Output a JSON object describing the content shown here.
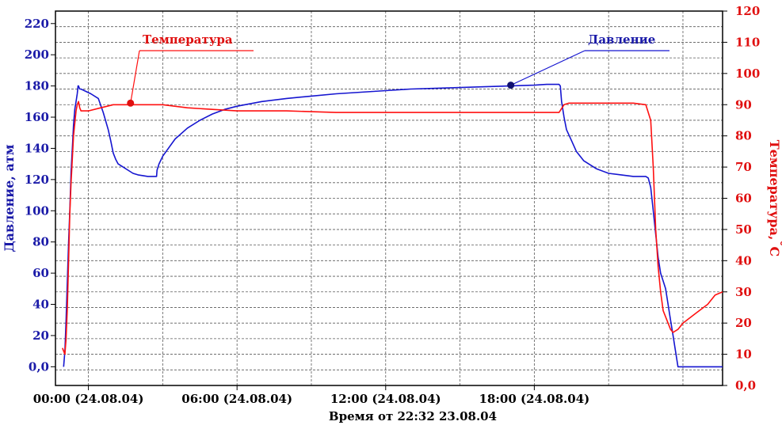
{
  "chart_data": {
    "type": "line",
    "title": "",
    "xlabel": "Время от 22:32  23.08.04",
    "ylabel_left": "Давление, атм",
    "ylabel_right_main": "Температура,",
    "ylabel_right_unit": "С",
    "ylabel_right_degree": "°",
    "x_unit": "hours",
    "xlim": [
      -1.33,
      25.6
    ],
    "x_ticks": [
      {
        "value": 0,
        "label": "00:00 (24.08.04)"
      },
      {
        "value": 6,
        "label": "06:00 (24.08.04)"
      },
      {
        "value": 12,
        "label": "12:00 (24.08.04)"
      },
      {
        "value": 18,
        "label": "18:00 (24.08.04)"
      }
    ],
    "y_left": {
      "lim": [
        -12,
        228
      ],
      "ticks": [
        {
          "value": 0,
          "label": "0,0"
        },
        {
          "value": 20,
          "label": "20"
        },
        {
          "value": 40,
          "label": "40"
        },
        {
          "value": 60,
          "label": "60"
        },
        {
          "value": 80,
          "label": "80"
        },
        {
          "value": 100,
          "label": "100"
        },
        {
          "value": 120,
          "label": "120"
        },
        {
          "value": 140,
          "label": "140"
        },
        {
          "value": 160,
          "label": "160"
        },
        {
          "value": 180,
          "label": "180"
        },
        {
          "value": 200,
          "label": "200"
        },
        {
          "value": 220,
          "label": "220"
        }
      ]
    },
    "y_right": {
      "lim": [
        0,
        120
      ],
      "ticks": [
        {
          "value": 0,
          "label": "0,0"
        },
        {
          "value": 10,
          "label": "10"
        },
        {
          "value": 20,
          "label": "20"
        },
        {
          "value": 30,
          "label": "30"
        },
        {
          "value": 40,
          "label": "40"
        },
        {
          "value": 50,
          "label": "50"
        },
        {
          "value": 60,
          "label": "60"
        },
        {
          "value": 70,
          "label": "70"
        },
        {
          "value": 80,
          "label": "80"
        },
        {
          "value": 90,
          "label": "90"
        },
        {
          "value": 100,
          "label": "100"
        },
        {
          "value": 110,
          "label": "110"
        },
        {
          "value": 120,
          "label": "120"
        }
      ]
    },
    "grid": true,
    "series": [
      {
        "name": "Давление",
        "axis": "left",
        "color": "#1515d0",
        "x": [
          -1.0,
          -0.95,
          -0.9,
          -0.85,
          -0.8,
          -0.75,
          -0.7,
          -0.65,
          -0.6,
          -0.55,
          -0.5,
          -0.45,
          -0.42,
          -0.4,
          -0.35,
          -0.3,
          0.1,
          0.4,
          0.6,
          0.8,
          0.9,
          1.0,
          1.1,
          1.2,
          1.4,
          1.6,
          1.8,
          2.0,
          2.2,
          2.4,
          2.6,
          2.75,
          2.77,
          2.85,
          3.0,
          3.5,
          4.0,
          4.5,
          5.0,
          5.5,
          6.0,
          7.0,
          8.0,
          9.0,
          10.0,
          11.0,
          12.0,
          13.0,
          14.0,
          15.0,
          16.0,
          17.0,
          18.0,
          18.5,
          19.0,
          19.05,
          19.1,
          19.2,
          19.3,
          19.5,
          19.7,
          20.0,
          20.5,
          21.0,
          21.5,
          22.0,
          22.5,
          22.6,
          22.7,
          22.8,
          22.9,
          23.0,
          23.1,
          23.2,
          23.3,
          23.4,
          23.5,
          23.6,
          23.7,
          23.8,
          24.0,
          25.6
        ],
        "values": [
          0,
          10,
          30,
          55,
          80,
          100,
          125,
          140,
          155,
          165,
          170,
          175,
          180,
          180,
          178,
          178,
          175,
          172,
          163,
          152,
          145,
          137,
          133,
          130,
          128,
          126,
          124,
          123,
          122.5,
          122,
          122,
          122,
          126,
          130,
          135,
          146,
          153,
          158,
          162,
          165,
          167,
          170,
          172,
          173.5,
          175,
          176,
          177,
          178,
          178.5,
          179,
          179.5,
          180,
          180.5,
          181,
          181,
          180,
          170,
          160,
          152,
          145,
          138,
          132,
          127,
          124,
          123,
          122,
          122,
          121,
          115,
          100,
          85,
          70,
          60,
          55,
          50,
          40,
          30,
          20,
          10,
          0,
          0,
          0
        ]
      },
      {
        "name": "Температура",
        "axis": "right",
        "color": "#ff1010",
        "x": [
          -1.05,
          -0.95,
          -0.9,
          -0.85,
          -0.8,
          -0.75,
          -0.7,
          -0.6,
          -0.5,
          -0.45,
          -0.4,
          -0.35,
          -0.3,
          0.0,
          0.5,
          1.0,
          2.0,
          3.0,
          4.0,
          5.0,
          6.0,
          8.0,
          10.0,
          12.0,
          14.0,
          16.0,
          18.0,
          19.0,
          19.2,
          19.4,
          19.6,
          20.0,
          21.0,
          22.0,
          22.5,
          22.7,
          22.8,
          22.9,
          23.0,
          23.1,
          23.2,
          23.4,
          23.5,
          23.6,
          23.8,
          24.0,
          24.5,
          25.0,
          25.3,
          25.6
        ],
        "values": [
          12,
          10,
          15,
          25,
          40,
          55,
          65,
          80,
          88,
          90,
          91,
          89,
          88,
          88,
          89,
          90,
          90,
          90,
          89,
          88.5,
          88,
          88,
          87.5,
          87.5,
          87.5,
          87.5,
          87.5,
          87.5,
          90,
          90.5,
          90.5,
          90.5,
          90.5,
          90.5,
          90,
          85,
          70,
          50,
          38,
          30,
          24,
          20,
          18,
          17,
          18,
          20,
          23,
          26,
          29,
          30
        ]
      }
    ],
    "annotations": [
      {
        "text": "Температура",
        "series": "Температура",
        "x": 1.7,
        "value": 90.5
      },
      {
        "text": "Давление",
        "series": "Давление",
        "x": 17.05,
        "value": 180.5
      }
    ]
  }
}
